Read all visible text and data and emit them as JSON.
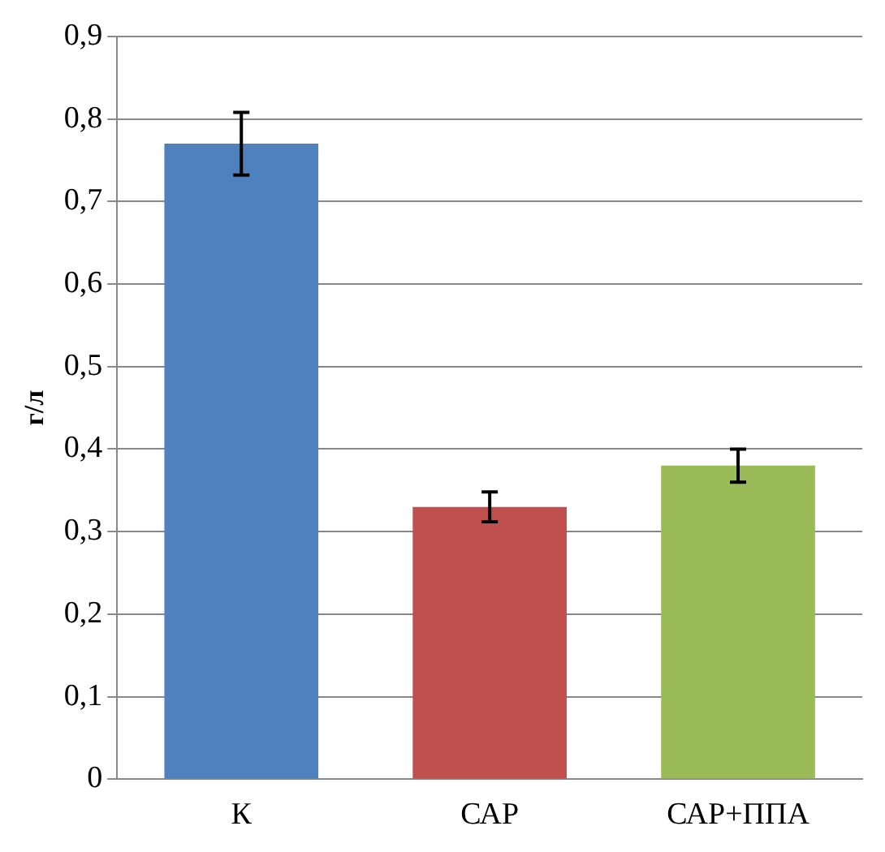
{
  "chart_data": {
    "type": "bar",
    "ylabel": "г/л",
    "categories": [
      "К",
      "САР",
      "САР+ППА"
    ],
    "values": [
      0.77,
      0.33,
      0.38
    ],
    "colors": [
      "#4f81bd",
      "#c0504d",
      "#9bbb59"
    ],
    "errors": [
      0.038,
      0.018,
      0.02
    ],
    "ylim": [
      0,
      0.9
    ],
    "yticks": [
      {
        "value": 0,
        "label": "0"
      },
      {
        "value": 0.1,
        "label": "0,1"
      },
      {
        "value": 0.2,
        "label": "0,2"
      },
      {
        "value": 0.3,
        "label": "0,3"
      },
      {
        "value": 0.4,
        "label": "0,4"
      },
      {
        "value": 0.5,
        "label": "0,5"
      },
      {
        "value": 0.6,
        "label": "0,6"
      },
      {
        "value": 0.7,
        "label": "0,7"
      },
      {
        "value": 0.8,
        "label": "0,8"
      },
      {
        "value": 0.9,
        "label": "0,9"
      }
    ],
    "grid": "y",
    "legend": false
  }
}
